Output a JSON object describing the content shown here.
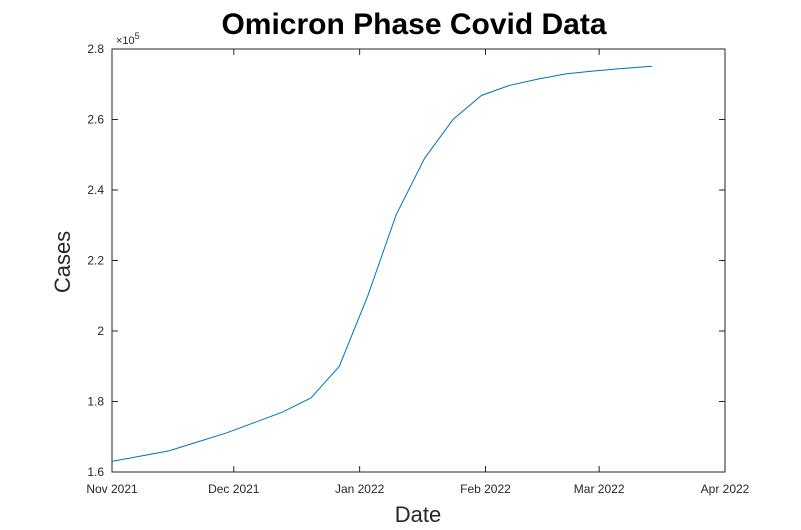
{
  "chart_data": {
    "type": "line",
    "title": "Omicron Phase Covid Data",
    "xlabel": "Date",
    "ylabel": "Cases",
    "y_exponent_base": "×10",
    "y_exponent_power": "5",
    "xlim": [
      "2021-11-01",
      "2022-04-01"
    ],
    "ylim": [
      1.6,
      2.8
    ],
    "x_ticks": [
      {
        "date": "2021-11-01",
        "label": "Nov 2021"
      },
      {
        "date": "2021-12-01",
        "label": "Dec 2021"
      },
      {
        "date": "2022-01-01",
        "label": "Jan 2022"
      },
      {
        "date": "2022-02-01",
        "label": "Feb 2022"
      },
      {
        "date": "2022-03-01",
        "label": "Mar 2022"
      },
      {
        "date": "2022-04-01",
        "label": "Apr 2022"
      }
    ],
    "y_ticks": [
      {
        "value": 1.6,
        "label": "1.6"
      },
      {
        "value": 1.8,
        "label": "1.8"
      },
      {
        "value": 2.0,
        "label": "2"
      },
      {
        "value": 2.2,
        "label": "2.2"
      },
      {
        "value": 2.4,
        "label": "2.4"
      },
      {
        "value": 2.6,
        "label": "2.6"
      },
      {
        "value": 2.8,
        "label": "2.8"
      }
    ],
    "grid": false,
    "line_color": "#0072BD",
    "series": [
      {
        "x": [
          "2021-11-01",
          "2021-11-08",
          "2021-11-15",
          "2021-11-22",
          "2021-11-29",
          "2021-12-06",
          "2021-12-13",
          "2021-12-20",
          "2021-12-27",
          "2022-01-03",
          "2022-01-10",
          "2022-01-17",
          "2022-01-24",
          "2022-01-31",
          "2022-02-07",
          "2022-02-14",
          "2022-02-21",
          "2022-02-28",
          "2022-03-07",
          "2022-03-14"
        ],
        "values": [
          1.63,
          1.645,
          1.66,
          1.685,
          1.71,
          1.74,
          1.77,
          1.81,
          1.9,
          2.1,
          2.33,
          2.49,
          2.6,
          2.668,
          2.697,
          2.715,
          2.73,
          2.738,
          2.745,
          2.751
        ]
      }
    ]
  }
}
